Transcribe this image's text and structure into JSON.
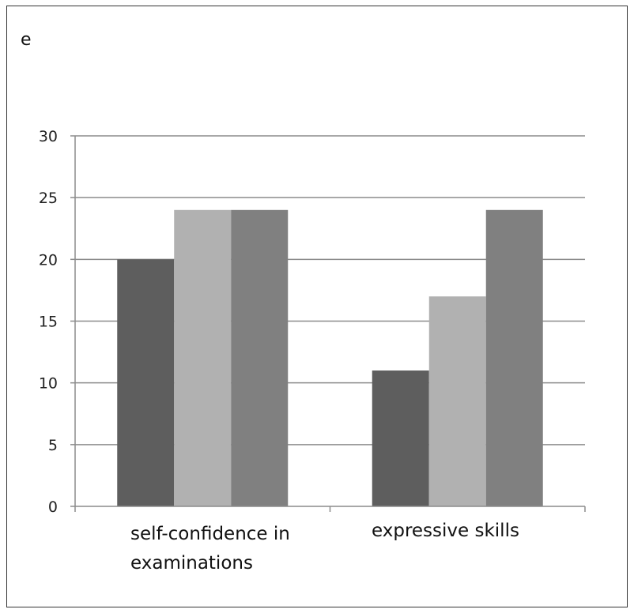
{
  "panel_label": "e",
  "chart_data": {
    "type": "bar",
    "categories": [
      [
        "self-confidence in",
        "examinations"
      ],
      [
        "expressive skills"
      ]
    ],
    "series": [
      {
        "values": [
          20,
          11
        ],
        "color": "#5e5e5e"
      },
      {
        "values": [
          24,
          17
        ],
        "color": "#b1b1b1"
      },
      {
        "values": [
          24,
          24
        ],
        "color": "#808080"
      }
    ],
    "ylim": [
      0,
      30
    ],
    "yticks": [
      0,
      5,
      10,
      15,
      20,
      25,
      30
    ],
    "grid": true,
    "legend": "none"
  }
}
